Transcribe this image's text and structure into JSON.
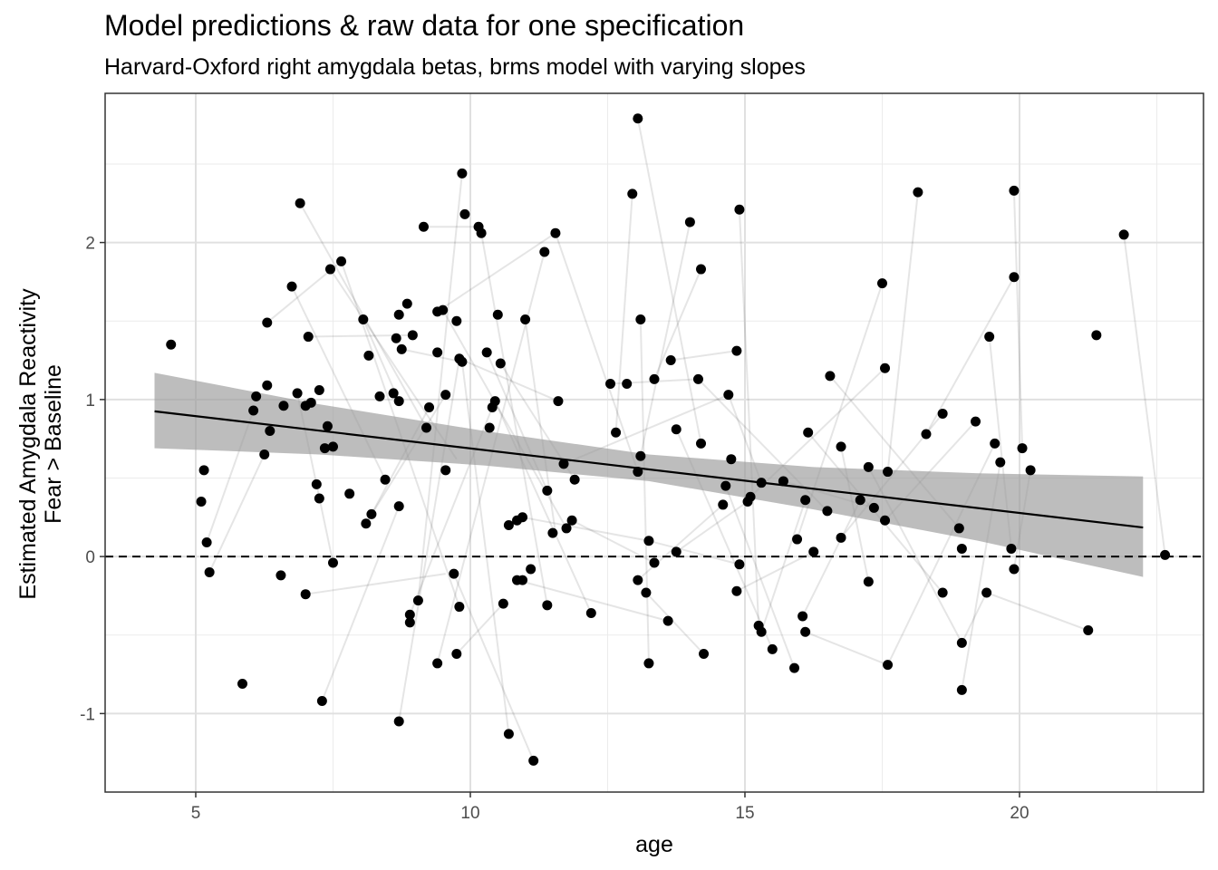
{
  "chart_data": {
    "type": "scatter",
    "title": "Model predictions & raw data for one specification",
    "subtitle": "Harvard-Oxford right amygdala betas, brms model with varying slopes",
    "xlabel": "age",
    "ylabel_lines": [
      "Estimated Amygdala Reactivity",
      "Fear > Baseline"
    ],
    "xlim": [
      3.35,
      23.35
    ],
    "ylim": [
      -1.5,
      2.95
    ],
    "x_ticks": [
      5,
      10,
      15,
      20
    ],
    "y_ticks": [
      -1,
      0,
      1,
      2
    ],
    "x_tick_labels": [
      "5",
      "10",
      "15",
      "20"
    ],
    "y_tick_labels": [
      "-1",
      "0",
      "1",
      "2"
    ],
    "grid": true,
    "reference_line": {
      "y": 0,
      "style": "dashed"
    },
    "fit_line": {
      "x": [
        4.25,
        22.25
      ],
      "y": [
        0.925,
        0.185
      ]
    },
    "ribbon": {
      "x": [
        4.25,
        7.25,
        10.25,
        13.25,
        16.25,
        19.25,
        22.25
      ],
      "lower": [
        0.69,
        0.65,
        0.58,
        0.48,
        0.3,
        0.1,
        -0.13
      ],
      "upper": [
        1.17,
        0.97,
        0.8,
        0.65,
        0.57,
        0.53,
        0.51
      ]
    },
    "points": [
      [
        4.55,
        1.35
      ],
      [
        5.1,
        0.35
      ],
      [
        5.15,
        0.55
      ],
      [
        5.2,
        0.09
      ],
      [
        5.25,
        -0.1
      ],
      [
        5.85,
        -0.81
      ],
      [
        6.05,
        0.93
      ],
      [
        6.1,
        1.02
      ],
      [
        6.25,
        0.65
      ],
      [
        6.3,
        1.09
      ],
      [
        6.3,
        1.49
      ],
      [
        6.35,
        0.8
      ],
      [
        6.55,
        -0.12
      ],
      [
        6.6,
        0.96
      ],
      [
        6.75,
        1.72
      ],
      [
        6.85,
        1.04
      ],
      [
        6.9,
        2.25
      ],
      [
        7.0,
        0.96
      ],
      [
        7.0,
        -0.24
      ],
      [
        7.05,
        1.4
      ],
      [
        7.1,
        0.98
      ],
      [
        7.2,
        0.46
      ],
      [
        7.25,
        1.06
      ],
      [
        7.25,
        0.37
      ],
      [
        7.3,
        -0.92
      ],
      [
        7.35,
        0.69
      ],
      [
        7.4,
        0.83
      ],
      [
        7.45,
        1.83
      ],
      [
        7.5,
        -0.04
      ],
      [
        7.5,
        0.7
      ],
      [
        7.65,
        1.88
      ],
      [
        7.8,
        0.4
      ],
      [
        8.05,
        1.51
      ],
      [
        8.1,
        0.21
      ],
      [
        8.15,
        1.28
      ],
      [
        8.2,
        0.27
      ],
      [
        8.35,
        1.02
      ],
      [
        8.45,
        0.49
      ],
      [
        8.6,
        1.04
      ],
      [
        8.65,
        1.39
      ],
      [
        8.7,
        0.99
      ],
      [
        8.7,
        1.54
      ],
      [
        8.7,
        -1.05
      ],
      [
        8.7,
        0.32
      ],
      [
        8.75,
        1.32
      ],
      [
        8.85,
        1.61
      ],
      [
        8.9,
        -0.37
      ],
      [
        8.9,
        -0.42
      ],
      [
        8.95,
        1.41
      ],
      [
        9.05,
        -0.28
      ],
      [
        9.15,
        2.1
      ],
      [
        9.2,
        0.82
      ],
      [
        9.25,
        0.95
      ],
      [
        9.4,
        1.56
      ],
      [
        9.4,
        1.3
      ],
      [
        9.4,
        -0.68
      ],
      [
        9.5,
        1.57
      ],
      [
        9.55,
        1.03
      ],
      [
        9.55,
        0.55
      ],
      [
        9.7,
        -0.11
      ],
      [
        9.75,
        -0.62
      ],
      [
        9.75,
        1.5
      ],
      [
        9.8,
        -0.32
      ],
      [
        9.8,
        1.26
      ],
      [
        9.85,
        1.24
      ],
      [
        9.85,
        2.44
      ],
      [
        9.9,
        2.18
      ],
      [
        10.15,
        2.1
      ],
      [
        10.2,
        2.06
      ],
      [
        10.3,
        1.3
      ],
      [
        10.35,
        0.82
      ],
      [
        10.4,
        0.95
      ],
      [
        10.45,
        0.99
      ],
      [
        10.5,
        1.54
      ],
      [
        10.55,
        1.23
      ],
      [
        10.6,
        -0.3
      ],
      [
        10.7,
        0.2
      ],
      [
        10.7,
        -1.13
      ],
      [
        10.85,
        -0.15
      ],
      [
        10.85,
        0.23
      ],
      [
        10.95,
        0.25
      ],
      [
        10.95,
        -0.15
      ],
      [
        11.0,
        1.51
      ],
      [
        11.1,
        -0.08
      ],
      [
        11.15,
        -1.3
      ],
      [
        11.35,
        1.94
      ],
      [
        11.4,
        -0.31
      ],
      [
        11.4,
        0.42
      ],
      [
        11.5,
        0.15
      ],
      [
        11.55,
        2.06
      ],
      [
        11.6,
        0.99
      ],
      [
        11.7,
        0.59
      ],
      [
        11.75,
        0.18
      ],
      [
        11.85,
        0.23
      ],
      [
        11.9,
        0.49
      ],
      [
        12.2,
        -0.36
      ],
      [
        12.55,
        1.1
      ],
      [
        12.65,
        0.79
      ],
      [
        12.85,
        1.1
      ],
      [
        12.95,
        2.31
      ],
      [
        13.05,
        -0.15
      ],
      [
        13.05,
        0.54
      ],
      [
        13.05,
        2.79
      ],
      [
        13.1,
        1.51
      ],
      [
        13.1,
        0.64
      ],
      [
        13.2,
        -0.23
      ],
      [
        13.25,
        0.1
      ],
      [
        13.25,
        -0.68
      ],
      [
        13.35,
        1.13
      ],
      [
        13.35,
        -0.04
      ],
      [
        13.6,
        -0.41
      ],
      [
        13.65,
        1.25
      ],
      [
        13.75,
        0.81
      ],
      [
        13.75,
        0.03
      ],
      [
        14.0,
        2.13
      ],
      [
        14.15,
        1.13
      ],
      [
        14.2,
        1.83
      ],
      [
        14.2,
        0.72
      ],
      [
        14.25,
        -0.62
      ],
      [
        14.6,
        0.33
      ],
      [
        14.65,
        0.45
      ],
      [
        14.7,
        1.03
      ],
      [
        14.75,
        0.62
      ],
      [
        14.85,
        -0.22
      ],
      [
        14.85,
        1.31
      ],
      [
        14.9,
        -0.05
      ],
      [
        14.9,
        2.21
      ],
      [
        15.05,
        0.35
      ],
      [
        15.1,
        0.38
      ],
      [
        15.25,
        -0.44
      ],
      [
        15.3,
        -0.48
      ],
      [
        15.3,
        0.47
      ],
      [
        15.5,
        -0.59
      ],
      [
        15.7,
        0.48
      ],
      [
        15.9,
        -0.71
      ],
      [
        15.95,
        0.11
      ],
      [
        16.05,
        -0.38
      ],
      [
        16.1,
        -0.48
      ],
      [
        16.1,
        0.36
      ],
      [
        16.15,
        0.79
      ],
      [
        16.25,
        0.03
      ],
      [
        16.5,
        0.29
      ],
      [
        16.55,
        1.15
      ],
      [
        16.75,
        0.7
      ],
      [
        16.75,
        0.12
      ],
      [
        17.1,
        0.36
      ],
      [
        17.25,
        -0.16
      ],
      [
        17.25,
        0.57
      ],
      [
        17.35,
        0.31
      ],
      [
        17.5,
        1.74
      ],
      [
        17.55,
        0.23
      ],
      [
        17.55,
        1.2
      ],
      [
        17.6,
        0.54
      ],
      [
        17.6,
        -0.69
      ],
      [
        18.15,
        2.32
      ],
      [
        18.3,
        0.78
      ],
      [
        18.6,
        0.91
      ],
      [
        18.6,
        -0.23
      ],
      [
        18.9,
        0.18
      ],
      [
        18.95,
        0.05
      ],
      [
        18.95,
        -0.55
      ],
      [
        18.95,
        -0.85
      ],
      [
        19.2,
        0.86
      ],
      [
        19.4,
        -0.23
      ],
      [
        19.45,
        1.4
      ],
      [
        19.55,
        0.72
      ],
      [
        19.65,
        0.6
      ],
      [
        19.85,
        0.05
      ],
      [
        19.9,
        -0.08
      ],
      [
        19.9,
        1.78
      ],
      [
        19.9,
        2.33
      ],
      [
        20.05,
        0.69
      ],
      [
        20.2,
        0.55
      ],
      [
        21.25,
        -0.47
      ],
      [
        21.4,
        1.41
      ],
      [
        21.9,
        2.05
      ],
      [
        22.65,
        0.01
      ]
    ],
    "within_subject_segments": [
      [
        [
          5.2,
          0.09
        ],
        [
          6.05,
          0.93
        ]
      ],
      [
        [
          5.25,
          -0.1
        ],
        [
          6.25,
          0.65
        ]
      ],
      [
        [
          6.3,
          1.49
        ],
        [
          7.65,
          1.88
        ]
      ],
      [
        [
          6.75,
          1.72
        ],
        [
          8.45,
          0.49
        ]
      ],
      [
        [
          6.85,
          1.04
        ],
        [
          7.5,
          -0.04
        ]
      ],
      [
        [
          6.9,
          2.25
        ],
        [
          9.2,
          0.82
        ]
      ],
      [
        [
          7.0,
          -0.24
        ],
        [
          9.55,
          -0.11
        ]
      ],
      [
        [
          7.05,
          1.4
        ],
        [
          8.95,
          1.41
        ]
      ],
      [
        [
          7.3,
          -0.92
        ],
        [
          8.7,
          0.32
        ]
      ],
      [
        [
          7.45,
          1.83
        ],
        [
          9.75,
          0.62
        ]
      ],
      [
        [
          7.65,
          1.88
        ],
        [
          9.8,
          -0.32
        ]
      ],
      [
        [
          8.05,
          1.51
        ],
        [
          8.7,
          0.99
        ]
      ],
      [
        [
          8.1,
          0.21
        ],
        [
          9.55,
          1.03
        ]
      ],
      [
        [
          8.2,
          0.27
        ],
        [
          9.25,
          0.95
        ]
      ],
      [
        [
          8.7,
          -1.05
        ],
        [
          9.8,
          1.26
        ]
      ],
      [
        [
          8.75,
          1.32
        ],
        [
          9.85,
          1.24
        ]
      ],
      [
        [
          8.9,
          -0.37
        ],
        [
          10.4,
          0.95
        ]
      ],
      [
        [
          9.05,
          -0.28
        ],
        [
          9.85,
          2.44
        ]
      ],
      [
        [
          9.15,
          2.1
        ],
        [
          10.15,
          2.1
        ]
      ],
      [
        [
          9.4,
          -0.68
        ],
        [
          11.35,
          1.94
        ]
      ],
      [
        [
          9.4,
          1.56
        ],
        [
          11.55,
          2.06
        ]
      ],
      [
        [
          9.5,
          1.57
        ],
        [
          11.75,
          0.18
        ]
      ],
      [
        [
          9.7,
          -0.11
        ],
        [
          11.15,
          -1.3
        ]
      ],
      [
        [
          9.75,
          -0.62
        ],
        [
          10.6,
          -0.3
        ]
      ],
      [
        [
          9.8,
          1.26
        ],
        [
          11.6,
          0.99
        ]
      ],
      [
        [
          9.85,
          1.24
        ],
        [
          10.7,
          -1.13
        ]
      ],
      [
        [
          10.2,
          2.06
        ],
        [
          11.4,
          -0.31
        ]
      ],
      [
        [
          10.3,
          1.3
        ],
        [
          11.4,
          0.42
        ]
      ],
      [
        [
          10.45,
          0.99
        ],
        [
          12.2,
          -0.36
        ]
      ],
      [
        [
          10.55,
          1.23
        ],
        [
          11.9,
          0.49
        ]
      ],
      [
        [
          10.85,
          -0.15
        ],
        [
          13.6,
          -0.41
        ]
      ],
      [
        [
          10.95,
          0.25
        ],
        [
          13.25,
          0.1
        ]
      ],
      [
        [
          11.0,
          1.51
        ],
        [
          11.55,
          0.15
        ]
      ],
      [
        [
          11.55,
          2.06
        ],
        [
          13.05,
          0.54
        ]
      ],
      [
        [
          11.7,
          0.59
        ],
        [
          14.7,
          1.03
        ]
      ],
      [
        [
          11.85,
          0.23
        ],
        [
          13.35,
          -0.04
        ]
      ],
      [
        [
          12.55,
          1.1
        ],
        [
          14.15,
          1.13
        ]
      ],
      [
        [
          12.95,
          2.31
        ],
        [
          12.65,
          0.79
        ]
      ],
      [
        [
          13.05,
          -0.15
        ],
        [
          14.6,
          0.33
        ]
      ],
      [
        [
          13.05,
          2.79
        ],
        [
          14.2,
          0.72
        ]
      ],
      [
        [
          13.1,
          1.51
        ],
        [
          13.25,
          -0.68
        ]
      ],
      [
        [
          13.2,
          -0.23
        ],
        [
          14.25,
          -0.62
        ]
      ],
      [
        [
          13.25,
          0.1
        ],
        [
          14.9,
          -0.05
        ]
      ],
      [
        [
          13.35,
          1.13
        ],
        [
          14.2,
          1.83
        ]
      ],
      [
        [
          13.65,
          1.25
        ],
        [
          14.85,
          1.31
        ]
      ],
      [
        [
          13.75,
          0.81
        ],
        [
          15.5,
          -0.59
        ]
      ],
      [
        [
          13.75,
          0.03
        ],
        [
          15.05,
          0.35
        ]
      ],
      [
        [
          14.0,
          2.13
        ],
        [
          13.1,
          0.64
        ]
      ],
      [
        [
          14.15,
          1.13
        ],
        [
          16.5,
          0.29
        ]
      ],
      [
        [
          14.65,
          0.45
        ],
        [
          15.9,
          -0.71
        ]
      ],
      [
        [
          14.7,
          1.03
        ],
        [
          15.3,
          0.47
        ]
      ],
      [
        [
          14.85,
          -0.22
        ],
        [
          16.25,
          0.03
        ]
      ],
      [
        [
          14.9,
          2.21
        ],
        [
          15.25,
          -0.44
        ]
      ],
      [
        [
          15.1,
          0.38
        ],
        [
          17.55,
          1.2
        ]
      ],
      [
        [
          15.3,
          -0.48
        ],
        [
          16.1,
          0.36
        ]
      ],
      [
        [
          15.7,
          0.48
        ],
        [
          17.35,
          0.31
        ]
      ],
      [
        [
          15.95,
          0.11
        ],
        [
          17.5,
          1.74
        ]
      ],
      [
        [
          16.05,
          -0.38
        ],
        [
          17.1,
          0.36
        ]
      ],
      [
        [
          16.1,
          -0.48
        ],
        [
          17.6,
          -0.69
        ]
      ],
      [
        [
          16.15,
          0.79
        ],
        [
          18.6,
          -0.23
        ]
      ],
      [
        [
          16.55,
          1.15
        ],
        [
          18.9,
          0.18
        ]
      ],
      [
        [
          16.75,
          0.7
        ],
        [
          17.25,
          -0.16
        ]
      ],
      [
        [
          16.75,
          0.12
        ],
        [
          18.6,
          0.91
        ]
      ],
      [
        [
          17.25,
          0.57
        ],
        [
          18.95,
          -0.55
        ]
      ],
      [
        [
          17.55,
          0.23
        ],
        [
          19.2,
          0.86
        ]
      ],
      [
        [
          17.6,
          0.54
        ],
        [
          18.15,
          2.32
        ]
      ],
      [
        [
          17.6,
          -0.69
        ],
        [
          19.55,
          0.72
        ]
      ],
      [
        [
          18.3,
          0.78
        ],
        [
          19.9,
          1.78
        ]
      ],
      [
        [
          18.95,
          -0.85
        ],
        [
          19.65,
          0.6
        ]
      ],
      [
        [
          18.95,
          -0.55
        ],
        [
          19.4,
          -0.23
        ]
      ],
      [
        [
          19.45,
          1.4
        ],
        [
          19.85,
          0.05
        ]
      ],
      [
        [
          19.9,
          -0.08
        ],
        [
          20.2,
          0.55
        ]
      ],
      [
        [
          20.05,
          0.69
        ],
        [
          19.9,
          2.33
        ]
      ],
      [
        [
          21.25,
          -0.47
        ],
        [
          19.4,
          -0.23
        ]
      ],
      [
        [
          22.65,
          0.01
        ],
        [
          21.9,
          2.05
        ]
      ]
    ]
  }
}
